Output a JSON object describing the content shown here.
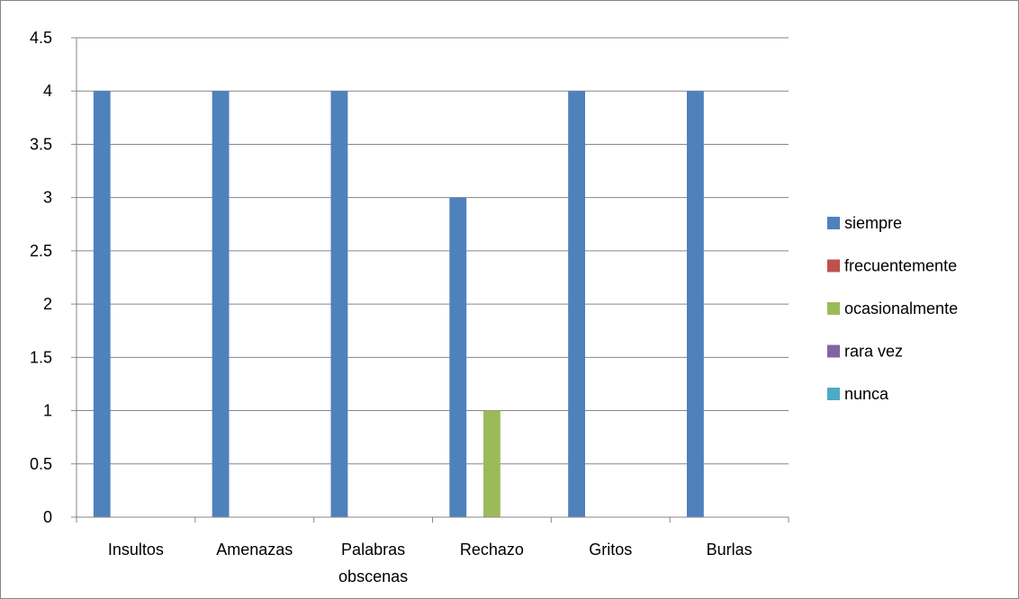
{
  "chart_data": {
    "type": "bar",
    "title": "",
    "xlabel": "",
    "ylabel": "",
    "categories": [
      "Insultos",
      "Amenazas",
      "Palabras obscenas",
      "Rechazo",
      "Gritos",
      "Burlas"
    ],
    "category_lines": [
      [
        "Insultos"
      ],
      [
        "Amenazas"
      ],
      [
        "Palabras",
        "obscenas"
      ],
      [
        "Rechazo"
      ],
      [
        "Gritos"
      ],
      [
        "Burlas"
      ]
    ],
    "series": [
      {
        "name": "siempre",
        "color": "#4F81BD",
        "values": [
          4,
          4,
          4,
          3,
          4,
          4
        ]
      },
      {
        "name": "frecuentemente",
        "color": "#C0504D",
        "values": [
          0,
          0,
          0,
          0,
          0,
          0
        ]
      },
      {
        "name": "ocasionalmente",
        "color": "#9BBB59",
        "values": [
          0,
          0,
          0,
          1,
          0,
          0
        ]
      },
      {
        "name": "rara vez",
        "color": "#8064A2",
        "values": [
          0,
          0,
          0,
          0,
          0,
          0
        ]
      },
      {
        "name": "nunca",
        "color": "#4BACC6",
        "values": [
          0,
          0,
          0,
          0,
          0,
          0
        ]
      }
    ],
    "ylim": [
      0,
      4.5
    ],
    "yticks": [
      0,
      0.5,
      1,
      1.5,
      2,
      2.5,
      3,
      3.5,
      4,
      4.5
    ],
    "ytick_labels": [
      "0",
      "0.5",
      "1",
      "1.5",
      "2",
      "2.5",
      "3",
      "3.5",
      "4",
      "4.5"
    ],
    "grid": true,
    "legend_position": "right"
  }
}
